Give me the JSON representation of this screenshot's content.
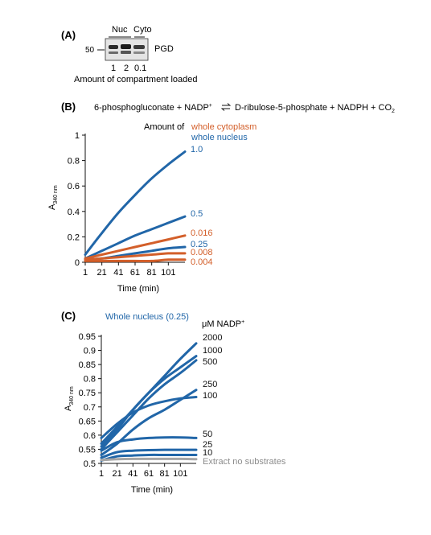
{
  "panelA": {
    "label": "(A)",
    "col_nuc": "Nuc",
    "col_cyto": "Cyto",
    "marker": "50",
    "protein": "PGD",
    "lane_values": [
      "1",
      "2",
      "0.1"
    ],
    "caption": "Amount of compartment loaded"
  },
  "panelB": {
    "label": "(B)",
    "equation_left": "6-phosphogluconate + NADP",
    "equation_right": "D-ribulose-5-phosphate + NADPH + CO",
    "equation_sub": "2",
    "plus_sup": "+",
    "legend_prefix": "Amount of",
    "legend_cyto": "whole cytoplasm",
    "legend_nuc": "whole nucleus"
  },
  "panelC": {
    "label": "(C)",
    "title": "Whole nucleus (0.25)",
    "header": "μM NADP",
    "header_sup": "+"
  },
  "colors": {
    "nucleus": "#2166a8",
    "cytoplasm": "#d35f2a",
    "control": "#a6a6a6"
  },
  "chart_data": [
    {
      "type": "line",
      "panel": "B",
      "xlabel": "Time (min)",
      "ylabel": "A",
      "ylabel_sub": "340 nm",
      "xticks": [
        "1",
        "21",
        "41",
        "61",
        "81",
        "101"
      ],
      "yticks": [
        "0",
        "0.2",
        "0.4",
        "0.6",
        "0.8",
        "1"
      ],
      "xlim": [
        1,
        121
      ],
      "ylim": [
        0,
        1
      ],
      "series": [
        {
          "name": "1.0",
          "color": "nucleus",
          "x": [
            1,
            21,
            41,
            61,
            81,
            101,
            121
          ],
          "values": [
            0.06,
            0.23,
            0.39,
            0.53,
            0.66,
            0.77,
            0.87
          ]
        },
        {
          "name": "0.5",
          "color": "nucleus",
          "x": [
            1,
            21,
            41,
            61,
            81,
            101,
            121
          ],
          "values": [
            0.03,
            0.09,
            0.15,
            0.21,
            0.26,
            0.31,
            0.36
          ]
        },
        {
          "name": "0.25",
          "color": "nucleus",
          "x": [
            1,
            21,
            41,
            61,
            81,
            101,
            121
          ],
          "values": [
            0.02,
            0.03,
            0.05,
            0.07,
            0.09,
            0.11,
            0.12
          ]
        },
        {
          "name": "0.016",
          "color": "cytoplasm",
          "x": [
            1,
            21,
            41,
            61,
            81,
            101,
            121
          ],
          "values": [
            0.03,
            0.06,
            0.09,
            0.12,
            0.15,
            0.18,
            0.21
          ]
        },
        {
          "name": "0.008",
          "color": "cytoplasm",
          "x": [
            1,
            21,
            41,
            61,
            81,
            101,
            121
          ],
          "values": [
            0.02,
            0.03,
            0.04,
            0.05,
            0.06,
            0.07,
            0.07
          ]
        },
        {
          "name": "0.004",
          "color": "cytoplasm",
          "x": [
            1,
            21,
            41,
            61,
            81,
            101,
            121
          ],
          "values": [
            0.01,
            0.01,
            0.01,
            0.01,
            0.01,
            0.02,
            0.02
          ]
        }
      ]
    },
    {
      "type": "line",
      "panel": "C",
      "xlabel": "Time (min)",
      "ylabel": "A",
      "ylabel_sub": "340 nm",
      "xticks": [
        "1",
        "21",
        "41",
        "61",
        "81",
        "101"
      ],
      "yticks": [
        "0.5",
        "0.55",
        "0.6",
        "0.65",
        "0.7",
        "0.75",
        "0.8",
        "0.85",
        "0.9",
        "0.95"
      ],
      "xlim": [
        1,
        121
      ],
      "ylim": [
        0.5,
        0.95
      ],
      "series": [
        {
          "name": "2000",
          "color": "nucleus",
          "x": [
            1,
            21,
            41,
            61,
            81,
            101,
            121
          ],
          "values": [
            0.56,
            0.62,
            0.69,
            0.75,
            0.81,
            0.87,
            0.925
          ]
        },
        {
          "name": "1000",
          "color": "nucleus",
          "x": [
            1,
            21,
            41,
            61,
            81,
            101,
            121
          ],
          "values": [
            0.57,
            0.63,
            0.69,
            0.75,
            0.8,
            0.84,
            0.88
          ]
        },
        {
          "name": "500",
          "color": "nucleus",
          "x": [
            1,
            21,
            41,
            61,
            81,
            101,
            121
          ],
          "values": [
            0.55,
            0.61,
            0.67,
            0.73,
            0.78,
            0.82,
            0.865
          ]
        },
        {
          "name": "250",
          "color": "nucleus",
          "x": [
            1,
            21,
            41,
            61,
            81,
            101,
            121
          ],
          "values": [
            0.53,
            0.57,
            0.62,
            0.66,
            0.69,
            0.725,
            0.76
          ]
        },
        {
          "name": "100",
          "color": "nucleus",
          "x": [
            1,
            21,
            41,
            61,
            81,
            101,
            121
          ],
          "values": [
            0.59,
            0.64,
            0.68,
            0.705,
            0.72,
            0.73,
            0.735
          ]
        },
        {
          "name": "50",
          "color": "nucleus",
          "x": [
            1,
            21,
            41,
            61,
            81,
            101,
            121
          ],
          "values": [
            0.545,
            0.575,
            0.585,
            0.59,
            0.592,
            0.592,
            0.59
          ]
        },
        {
          "name": "25",
          "color": "nucleus",
          "x": [
            1,
            21,
            41,
            61,
            81,
            101,
            121
          ],
          "values": [
            0.52,
            0.54,
            0.545,
            0.547,
            0.548,
            0.548,
            0.548
          ]
        },
        {
          "name": "10",
          "color": "nucleus",
          "x": [
            1,
            21,
            41,
            61,
            81,
            101,
            121
          ],
          "values": [
            0.51,
            0.525,
            0.528,
            0.53,
            0.53,
            0.53,
            0.53
          ]
        },
        {
          "name": "Extract no substrates",
          "color": "control",
          "x": [
            1,
            21,
            41,
            61,
            81,
            101,
            121
          ],
          "values": [
            0.512,
            0.515,
            0.516,
            0.516,
            0.516,
            0.516,
            0.515
          ]
        }
      ]
    }
  ]
}
